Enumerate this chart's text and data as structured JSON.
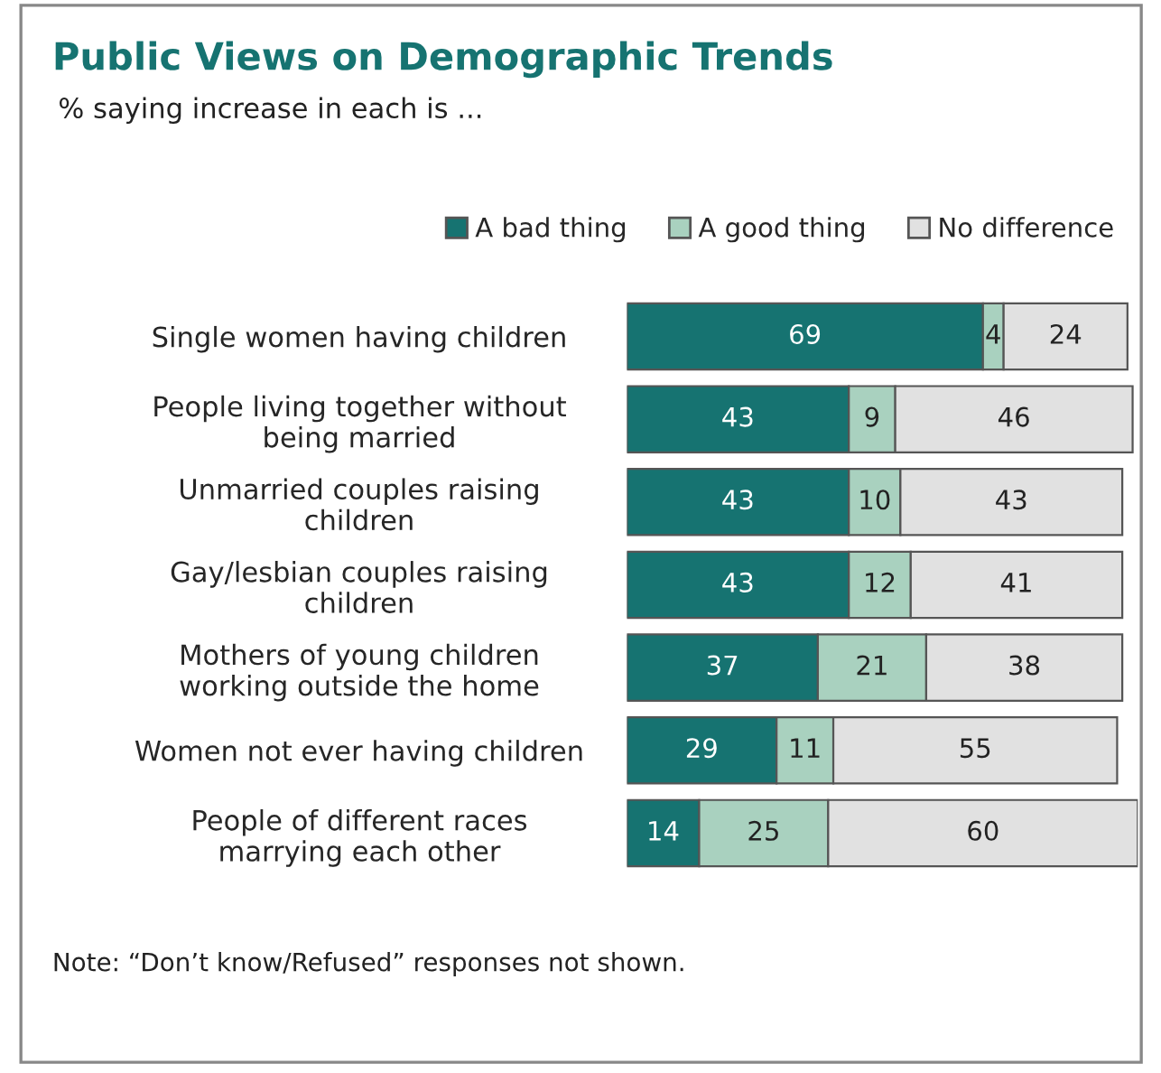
{
  "chart_data": {
    "type": "bar",
    "orientation": "horizontal",
    "stacked": true,
    "title": "Public Views on Demographic Trends",
    "subtitle": "% saying increase in each is ...",
    "categories": [
      "Single women having children",
      "People living together without\nbeing married",
      "Unmarried couples raising\nchildren",
      "Gay/lesbian couples raising\nchildren",
      "Mothers of young children\nworking outside the home",
      "Women not ever having children",
      "People of different races\nmarrying each other"
    ],
    "series": [
      {
        "name": "A bad thing",
        "color": "#167371",
        "values": [
          69,
          43,
          43,
          43,
          37,
          29,
          14
        ]
      },
      {
        "name": "A good thing",
        "color": "#a9d1bf",
        "values": [
          4,
          9,
          10,
          12,
          21,
          11,
          25
        ]
      },
      {
        "name": "No difference",
        "color": "#e1e1e1",
        "values": [
          24,
          46,
          43,
          41,
          38,
          55,
          60
        ]
      }
    ],
    "data_labels": true,
    "legend": "top",
    "grid": false,
    "tick_labels": "y",
    "annotations": [
      "Note: “Don’t know/Refused” responses not shown."
    ]
  }
}
